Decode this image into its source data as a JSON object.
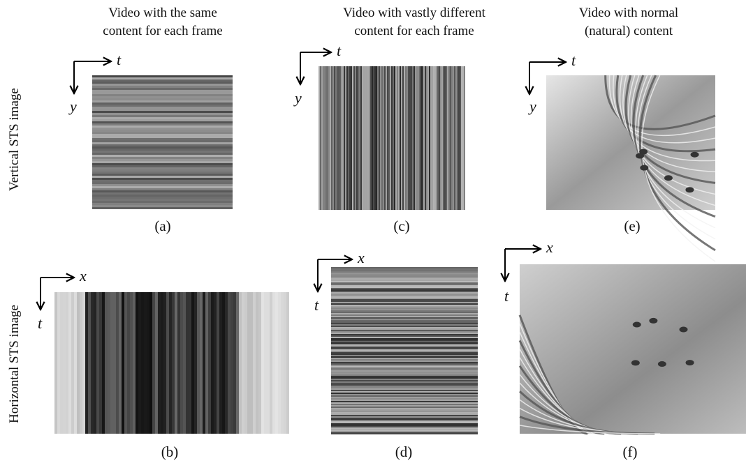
{
  "columns": [
    {
      "title_lines": [
        "Video with the same",
        "content for each frame"
      ]
    },
    {
      "title_lines": [
        "Video with vastly different",
        "content for each frame"
      ]
    },
    {
      "title_lines": [
        "Video with normal",
        "(natural) content"
      ]
    }
  ],
  "rows": [
    "Vertical STS image",
    "Horizontal STS image"
  ],
  "panels": [
    {
      "caption": "(a)",
      "axis_h": "t",
      "axis_v": "y"
    },
    {
      "caption": "(c)",
      "axis_h": "t",
      "axis_v": "y"
    },
    {
      "caption": "(e)",
      "axis_h": "t",
      "axis_v": "y"
    },
    {
      "caption": "(b)",
      "axis_h": "x",
      "axis_v": "t"
    },
    {
      "caption": "(d)",
      "axis_h": "x",
      "axis_v": "t"
    },
    {
      "caption": "(f)",
      "axis_h": "x",
      "axis_v": "t"
    }
  ]
}
